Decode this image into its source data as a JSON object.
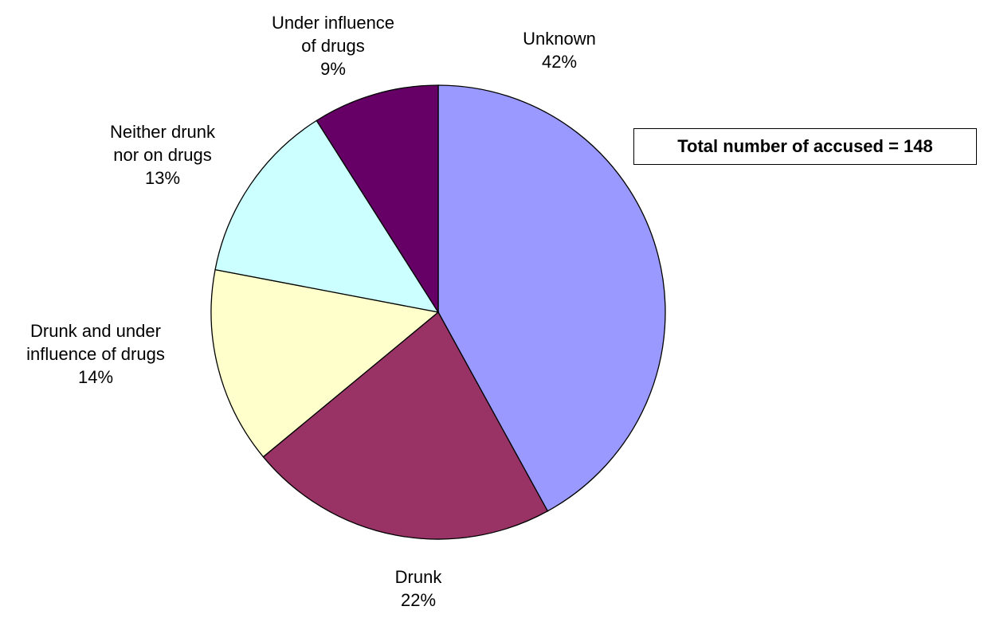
{
  "chart_data": {
    "type": "pie",
    "title": "",
    "slices": [
      {
        "label_lines": [
          "Unknown"
        ],
        "value": 42,
        "value_label": "42%",
        "color": "#9999FF"
      },
      {
        "label_lines": [
          "Drunk"
        ],
        "value": 22,
        "value_label": "22%",
        "color": "#993366"
      },
      {
        "label_lines": [
          "Drunk and under",
          "influence of drugs"
        ],
        "value": 14,
        "value_label": "14%",
        "color": "#FFFFCC"
      },
      {
        "label_lines": [
          "Neither drunk",
          "nor on drugs"
        ],
        "value": 13,
        "value_label": "13%",
        "color": "#CCFFFF"
      },
      {
        "label_lines": [
          "Under influence",
          "of  drugs"
        ],
        "value": 9,
        "value_label": "9%",
        "color": "#660066"
      }
    ],
    "start": "12 o'clock",
    "direction": "clockwise",
    "legend": "none"
  },
  "annotation": {
    "text": "Total number of accused = 148"
  }
}
